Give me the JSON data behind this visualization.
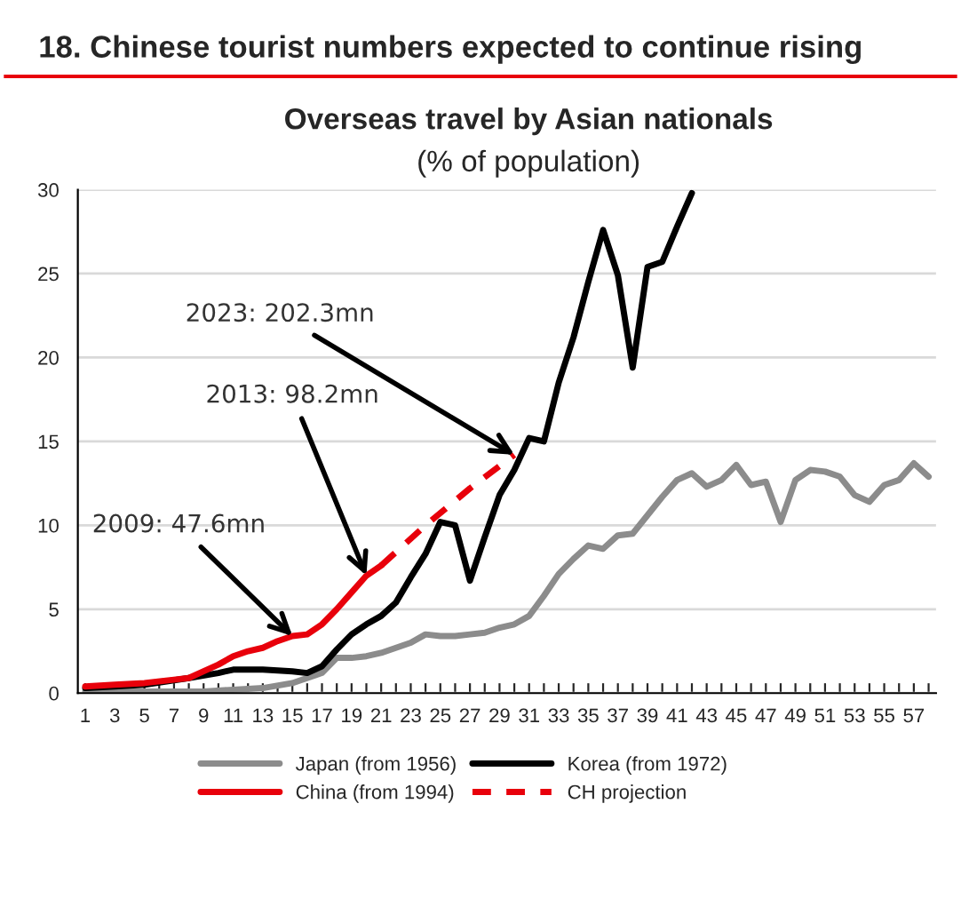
{
  "chart_data": {
    "type": "line",
    "title": "18. Chinese tourist numbers expected to continue rising",
    "subtitle": "Overseas travel by Asian nationals\n(% of population)",
    "series": [
      {
        "name": "Japan (from 1956)",
        "color": "#8c8c8c",
        "x": [
          1,
          3,
          5,
          7,
          9,
          11,
          13,
          15,
          16,
          17,
          18,
          19,
          20,
          21,
          22,
          23,
          24,
          25,
          26,
          27,
          28,
          29,
          30,
          31,
          32,
          33,
          34,
          35,
          36,
          37,
          38,
          39,
          40,
          41,
          42,
          43,
          44,
          45,
          46,
          47,
          48,
          49,
          50,
          51,
          52,
          53,
          54,
          55,
          56,
          57,
          58
        ],
        "values": [
          0.1,
          0.1,
          0.1,
          0.1,
          0.1,
          0.2,
          0.3,
          0.6,
          0.9,
          1.2,
          2.1,
          2.1,
          2.2,
          2.4,
          2.7,
          3.0,
          3.5,
          3.4,
          3.4,
          3.5,
          3.6,
          3.9,
          4.1,
          4.6,
          5.8,
          7.1,
          8.0,
          8.8,
          8.6,
          9.4,
          9.5,
          10.6,
          11.7,
          12.7,
          13.1,
          12.3,
          12.7,
          13.6,
          12.4,
          12.6,
          10.2,
          12.7,
          13.3,
          13.2,
          12.9,
          11.8,
          11.4,
          12.4,
          12.7,
          13.7,
          12.9
        ]
      },
      {
        "name": "Korea (from 1972)",
        "color": "#000000",
        "x": [
          1,
          3,
          5,
          8,
          10,
          11,
          13,
          15,
          16,
          17,
          18,
          19,
          20,
          21,
          22,
          23,
          24,
          25,
          26,
          27,
          28,
          29,
          30,
          31,
          32,
          33,
          34,
          35,
          36,
          37,
          38,
          39,
          40,
          41,
          42
        ],
        "values": [
          0.3,
          0.4,
          0.5,
          0.9,
          1.2,
          1.4,
          1.4,
          1.3,
          1.2,
          1.6,
          2.6,
          3.5,
          4.1,
          4.6,
          5.4,
          6.9,
          8.3,
          10.2,
          10.0,
          6.7,
          9.3,
          11.8,
          13.3,
          15.2,
          15.0,
          18.5,
          21.2,
          24.5,
          27.6,
          24.9,
          19.4,
          25.4,
          25.7,
          27.8,
          29.8
        ]
      },
      {
        "name": "China (from 1994)",
        "color": "#e8000b",
        "x": [
          1,
          3,
          5,
          7,
          8,
          9,
          10,
          11,
          12,
          13,
          14,
          15,
          16,
          17,
          18,
          19,
          20,
          21
        ],
        "values": [
          0.4,
          0.5,
          0.6,
          0.8,
          0.9,
          1.3,
          1.7,
          2.2,
          2.5,
          2.7,
          3.1,
          3.4,
          3.5,
          4.1,
          5.0,
          6.0,
          7.0,
          7.6
        ]
      },
      {
        "name": "CH projection",
        "color": "#e8000b",
        "line_style": "dashed",
        "x": [
          21,
          24,
          27,
          30
        ],
        "values": [
          7.6,
          10.0,
          12.2,
          14.2
        ]
      }
    ],
    "annotations": [
      {
        "text": "2009: 47.6mn",
        "x": 15,
        "y": 3.4
      },
      {
        "text": "2013: 98.2mn",
        "x": 20,
        "y": 7.0
      },
      {
        "text": "2023: 202.3mn",
        "x": 30,
        "y": 14.2
      }
    ],
    "xlim": [
      0.5,
      58.5
    ],
    "xticks": [
      1,
      {
        "value": 2,
        "label": null
      },
      3,
      {
        "value": 4,
        "label": null
      },
      5,
      {
        "value": 6,
        "label": null
      },
      7,
      {
        "value": 8,
        "label": null
      },
      9,
      {
        "value": 10,
        "label": null
      },
      11,
      {
        "value": 12,
        "label": null
      },
      13,
      {
        "value": 14,
        "label": null
      },
      15,
      {
        "value": 16,
        "label": null
      },
      17,
      {
        "value": 18,
        "label": null
      },
      19,
      {
        "value": 20,
        "label": null
      },
      21,
      {
        "value": 22,
        "label": null
      },
      23,
      {
        "value": 24,
        "label": null
      },
      25,
      {
        "value": 26,
        "label": null
      },
      27,
      {
        "value": 28,
        "label": null
      },
      29,
      {
        "value": 30,
        "label": null
      },
      31,
      {
        "value": 32,
        "label": null
      },
      33,
      {
        "value": 34,
        "label": null
      },
      35,
      {
        "value": 36,
        "label": null
      },
      37,
      {
        "value": 38,
        "label": null
      },
      39,
      {
        "value": 40,
        "label": null
      },
      41,
      {
        "value": 42,
        "label": null
      },
      43,
      {
        "value": 44,
        "label": null
      },
      45,
      {
        "value": 46,
        "label": null
      },
      47,
      {
        "value": 48,
        "label": null
      },
      49,
      {
        "value": 50,
        "label": null
      },
      51,
      {
        "value": 52,
        "label": null
      },
      53,
      {
        "value": 54,
        "label": null
      },
      55,
      {
        "value": 56,
        "label": null
      },
      57,
      {
        "value": 58,
        "label": null
      }
    ],
    "ylim": [
      0,
      30
    ],
    "yticks": [
      0,
      5,
      10,
      15,
      20,
      25,
      30
    ],
    "grid": "y",
    "legend": "bottom",
    "marker": "none",
    "line_style": "solid"
  }
}
